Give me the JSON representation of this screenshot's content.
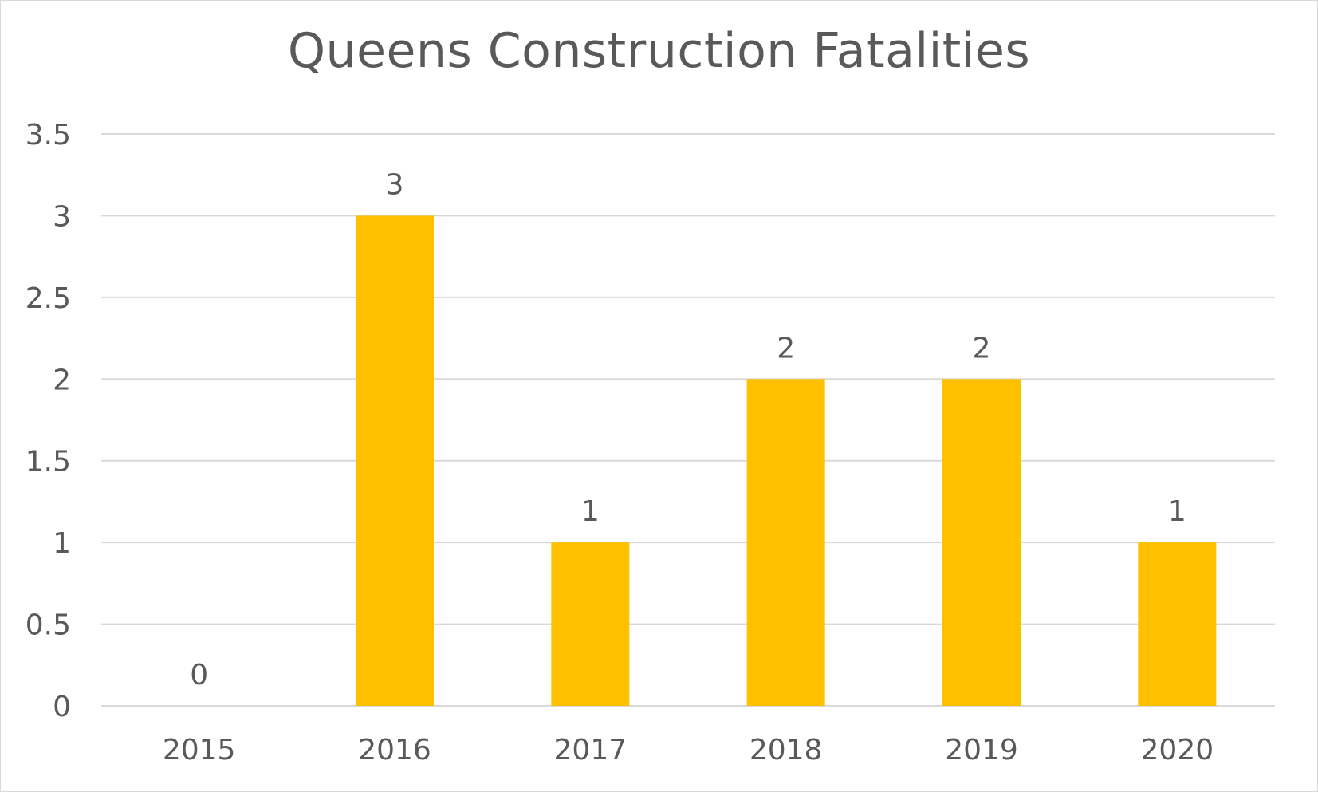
{
  "chart_data": {
    "type": "bar",
    "title": "Queens Construction Fatalities",
    "xlabel": "",
    "ylabel": "",
    "categories": [
      "2015",
      "2016",
      "2017",
      "2018",
      "2019",
      "2020"
    ],
    "values": [
      0,
      3,
      1,
      2,
      2,
      1
    ],
    "data_labels": [
      "0",
      "3",
      "1",
      "2",
      "2",
      "1"
    ],
    "ylim": [
      0,
      3.5
    ],
    "yticks": [
      0,
      0.5,
      1,
      1.5,
      2,
      2.5,
      3,
      3.5
    ],
    "ytick_labels": [
      "0",
      "0.5",
      "1",
      "1.5",
      "2",
      "2.5",
      "3",
      "3.5"
    ],
    "grid": true,
    "legend": "none",
    "colors": {
      "bar": "#ffc000",
      "grid": "#d9d9d9",
      "text": "#595959"
    }
  }
}
